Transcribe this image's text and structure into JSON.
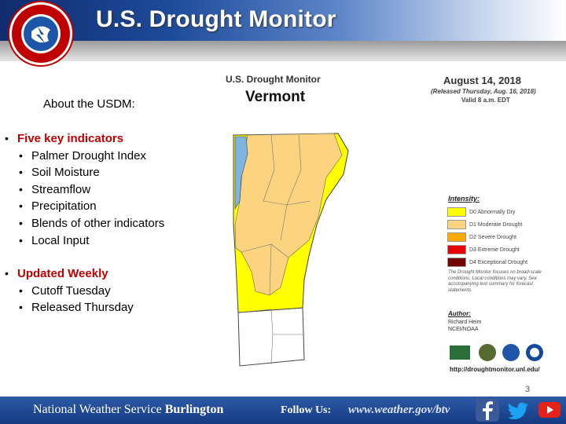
{
  "header": {
    "title": "U.S. Drought Monitor",
    "logo_text": "NATIONAL WEATHER SERVICE"
  },
  "content": {
    "about_heading": "About the USDM:",
    "sections": [
      {
        "label": "Five key indicators",
        "items": [
          "Palmer Drought Index",
          "Soil Moisture",
          "Streamflow",
          "Precipitation",
          "Blends of other indicators",
          "Local Input"
        ]
      },
      {
        "label": "Updated Weekly",
        "items": [
          "Cutoff Tuesday",
          "Released Thursday"
        ]
      }
    ]
  },
  "map": {
    "product": "U.S. Drought Monitor",
    "state": "Vermont",
    "date": "August 14, 2018",
    "released": "(Released Thursday, Aug. 16, 2018)",
    "valid": "Valid 8 a.m. EDT",
    "intensity_title": "Intensity:",
    "legend": [
      {
        "label": "D0 Abnormally Dry",
        "color": "#ffff00"
      },
      {
        "label": "D1 Moderate Drought",
        "color": "#fcd37f"
      },
      {
        "label": "D2 Severe Drought",
        "color": "#ffaa00"
      },
      {
        "label": "D3 Extreme Drought",
        "color": "#e60000"
      },
      {
        "label": "D4 Exceptional Drought",
        "color": "#730000"
      }
    ],
    "note": "The Drought Monitor focuses on broad-scale conditions. Local conditions may vary. See accompanying text summary for forecast statements.",
    "author_title": "Author:",
    "author_name": "Richard Heim",
    "author_org": "NCEI/NOAA",
    "url": "http://droughtmonitor.unl.edu/"
  },
  "page_number": "3",
  "footer": {
    "org_regular": "National Weather Service",
    "org_bold": "Burlington",
    "follow": "Follow Us:",
    "url": "www.weather.gov/btv"
  },
  "colors": {
    "header_blue": "#1d4a9a",
    "bullet_red": "#c00000",
    "footer_blue": "#1e4a96",
    "d0": "#ffff00",
    "d1": "#fcd37f"
  }
}
